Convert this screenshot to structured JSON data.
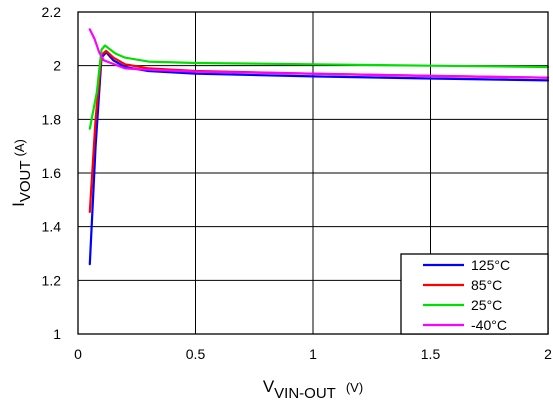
{
  "chart_data": {
    "type": "line",
    "xlabel": {
      "main": "V",
      "sub": "VIN-OUT",
      "unit": "(V)"
    },
    "ylabel": {
      "main": "I",
      "sub": "VOUT",
      "unit": "(A)"
    },
    "xlim": [
      0,
      2
    ],
    "ylim": [
      1,
      2.2
    ],
    "x_ticks": [
      "0",
      "0.5",
      "1",
      "1.5",
      "2"
    ],
    "y_ticks": [
      "1",
      "1.2",
      "1.4",
      "1.6",
      "1.8",
      "2",
      "2.2"
    ],
    "grid": true,
    "legend_position": "bottom-right",
    "series": [
      {
        "name": "125°C",
        "color": "#0000ff",
        "x": [
          0.05,
          0.075,
          0.1,
          0.12,
          0.15,
          0.2,
          0.3,
          0.5,
          1.0,
          1.5,
          2.0
        ],
        "y": [
          1.26,
          1.7,
          2.03,
          2.05,
          2.02,
          1.995,
          1.98,
          1.97,
          1.96,
          1.952,
          1.945
        ]
      },
      {
        "name": "85°C",
        "color": "#ff0000",
        "x": [
          0.05,
          0.075,
          0.1,
          0.12,
          0.15,
          0.2,
          0.3,
          0.5,
          1.0,
          1.5,
          2.0
        ],
        "y": [
          1.455,
          1.8,
          2.04,
          2.055,
          2.03,
          2.005,
          1.99,
          1.98,
          1.97,
          1.962,
          1.955
        ]
      },
      {
        "name": "25°C",
        "color": "#00e000",
        "x": [
          0.05,
          0.08,
          0.1,
          0.115,
          0.13,
          0.16,
          0.2,
          0.3,
          0.5,
          1.0,
          1.5,
          2.0
        ],
        "y": [
          1.765,
          1.9,
          2.06,
          2.075,
          2.065,
          2.045,
          2.03,
          2.015,
          2.01,
          2.005,
          2.0,
          1.995
        ]
      },
      {
        "name": "-40°C",
        "color": "#ff00ff",
        "x": [
          0.05,
          0.07,
          0.09,
          0.11,
          0.14,
          0.2,
          0.3,
          0.5,
          1.0,
          1.5,
          2.0
        ],
        "y": [
          2.135,
          2.1,
          2.05,
          2.02,
          2.01,
          1.99,
          1.985,
          1.978,
          1.97,
          1.962,
          1.955
        ]
      }
    ]
  }
}
